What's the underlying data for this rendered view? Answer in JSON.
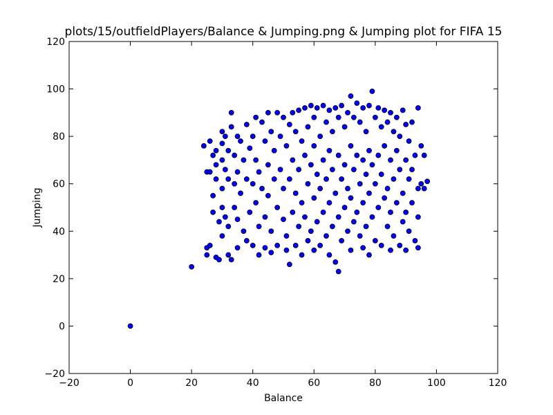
{
  "chart_data": {
    "type": "scatter",
    "title": "plots/15/outfieldPlayers/Balance & Jumping.png & Jumping plot for FIFA 15",
    "xlabel": "Balance",
    "ylabel": "Jumping",
    "xlim": [
      -20,
      120
    ],
    "ylim": [
      -20,
      120
    ],
    "xticks": [
      -20,
      0,
      20,
      40,
      60,
      80,
      100,
      120
    ],
    "yticks": [
      -20,
      0,
      20,
      40,
      60,
      80,
      100,
      120
    ],
    "grid": false,
    "legend": "none",
    "marker_color": "#0000ff",
    "edge_color": "#000000",
    "series": [
      {
        "points": [
          [
            0,
            0
          ],
          [
            20,
            25
          ],
          [
            24,
            76
          ],
          [
            26,
            78
          ],
          [
            27,
            72
          ],
          [
            25,
            65
          ],
          [
            26,
            65
          ],
          [
            25,
            33
          ],
          [
            25,
            30
          ],
          [
            26,
            34
          ],
          [
            27,
            55
          ],
          [
            27,
            48
          ],
          [
            28,
            74
          ],
          [
            28,
            68
          ],
          [
            28,
            62
          ],
          [
            28,
            29
          ],
          [
            29,
            28
          ],
          [
            29,
            44
          ],
          [
            30,
            82
          ],
          [
            30,
            77
          ],
          [
            30,
            70
          ],
          [
            30,
            58
          ],
          [
            30,
            50
          ],
          [
            30,
            38
          ],
          [
            31,
            80
          ],
          [
            31,
            66
          ],
          [
            31,
            46
          ],
          [
            32,
            74
          ],
          [
            32,
            62
          ],
          [
            32,
            42
          ],
          [
            32,
            30
          ],
          [
            33,
            90
          ],
          [
            33,
            84
          ],
          [
            33,
            28
          ],
          [
            34,
            72
          ],
          [
            34,
            60
          ],
          [
            34,
            50
          ],
          [
            35,
            80
          ],
          [
            35,
            65
          ],
          [
            35,
            45
          ],
          [
            35,
            33
          ],
          [
            36,
            78
          ],
          [
            36,
            56
          ],
          [
            37,
            70
          ],
          [
            37,
            40
          ],
          [
            38,
            85
          ],
          [
            38,
            62
          ],
          [
            38,
            36
          ],
          [
            39,
            75
          ],
          [
            39,
            48
          ],
          [
            40,
            80
          ],
          [
            40,
            60
          ],
          [
            40,
            34
          ],
          [
            41,
            88
          ],
          [
            41,
            70
          ],
          [
            41,
            52
          ],
          [
            42,
            65
          ],
          [
            42,
            42
          ],
          [
            42,
            30
          ],
          [
            43,
            86
          ],
          [
            43,
            58
          ],
          [
            44,
            78
          ],
          [
            44,
            46
          ],
          [
            44,
            33
          ],
          [
            45,
            90
          ],
          [
            45,
            68
          ],
          [
            45,
            55
          ],
          [
            46,
            82
          ],
          [
            46,
            40
          ],
          [
            46,
            31
          ],
          [
            47,
            74
          ],
          [
            47,
            62
          ],
          [
            48,
            90
          ],
          [
            48,
            50
          ],
          [
            48,
            34
          ],
          [
            49,
            80
          ],
          [
            49,
            66
          ],
          [
            50,
            88
          ],
          [
            50,
            58
          ],
          [
            50,
            45
          ],
          [
            51,
            76
          ],
          [
            51,
            38
          ],
          [
            51,
            32
          ],
          [
            52,
            85
          ],
          [
            52,
            62
          ],
          [
            52,
            26
          ],
          [
            53,
            90
          ],
          [
            53,
            70
          ],
          [
            53,
            48
          ],
          [
            54,
            82
          ],
          [
            54,
            56
          ],
          [
            54,
            34
          ],
          [
            55,
            91
          ],
          [
            55,
            66
          ],
          [
            55,
            42
          ],
          [
            56,
            78
          ],
          [
            56,
            52
          ],
          [
            56,
            30
          ],
          [
            57,
            92
          ],
          [
            57,
            72
          ],
          [
            57,
            46
          ],
          [
            58,
            84
          ],
          [
            58,
            60
          ],
          [
            58,
            36
          ],
          [
            59,
            93
          ],
          [
            59,
            68
          ],
          [
            59,
            40
          ],
          [
            60,
            88
          ],
          [
            60,
            76
          ],
          [
            60,
            54
          ],
          [
            60,
            32
          ],
          [
            61,
            92
          ],
          [
            61,
            64
          ],
          [
            61,
            44
          ],
          [
            62,
            80
          ],
          [
            62,
            58
          ],
          [
            62,
            34
          ],
          [
            63,
            93
          ],
          [
            63,
            70
          ],
          [
            63,
            48
          ],
          [
            64,
            86
          ],
          [
            64,
            62
          ],
          [
            64,
            38
          ],
          [
            65,
            91
          ],
          [
            65,
            74
          ],
          [
            65,
            52
          ],
          [
            65,
            30
          ],
          [
            66,
            82
          ],
          [
            66,
            66
          ],
          [
            66,
            42
          ],
          [
            67,
            92
          ],
          [
            67,
            56
          ],
          [
            67,
            27
          ],
          [
            68,
            88
          ],
          [
            68,
            72
          ],
          [
            68,
            46
          ],
          [
            68,
            23
          ],
          [
            69,
            93
          ],
          [
            69,
            62
          ],
          [
            69,
            36
          ],
          [
            70,
            84
          ],
          [
            70,
            68
          ],
          [
            70,
            50
          ],
          [
            71,
            90
          ],
          [
            71,
            58
          ],
          [
            71,
            40
          ],
          [
            72,
            97
          ],
          [
            72,
            76
          ],
          [
            72,
            54
          ],
          [
            72,
            32
          ],
          [
            73,
            88
          ],
          [
            73,
            66
          ],
          [
            73,
            44
          ],
          [
            74,
            94
          ],
          [
            74,
            72
          ],
          [
            74,
            48
          ],
          [
            75,
            86
          ],
          [
            75,
            60
          ],
          [
            75,
            38
          ],
          [
            76,
            92
          ],
          [
            76,
            70
          ],
          [
            76,
            52
          ],
          [
            76,
            33
          ],
          [
            77,
            82
          ],
          [
            77,
            64
          ],
          [
            77,
            42
          ],
          [
            78,
            93
          ],
          [
            78,
            74
          ],
          [
            78,
            56
          ],
          [
            78,
            30
          ],
          [
            79,
            99
          ],
          [
            79,
            68
          ],
          [
            79,
            46
          ],
          [
            80,
            88
          ],
          [
            80,
            60
          ],
          [
            80,
            36
          ],
          [
            81,
            92
          ],
          [
            81,
            72
          ],
          [
            81,
            50
          ],
          [
            82,
            84
          ],
          [
            82,
            64
          ],
          [
            82,
            34
          ],
          [
            83,
            91
          ],
          [
            83,
            76
          ],
          [
            83,
            54
          ],
          [
            84,
            86
          ],
          [
            84,
            58
          ],
          [
            84,
            42
          ],
          [
            85,
            90
          ],
          [
            85,
            70
          ],
          [
            85,
            48
          ],
          [
            85,
            32
          ],
          [
            86,
            82
          ],
          [
            86,
            62
          ],
          [
            86,
            38
          ],
          [
            87,
            88
          ],
          [
            87,
            74
          ],
          [
            87,
            52
          ],
          [
            88,
            80
          ],
          [
            88,
            66
          ],
          [
            88,
            34
          ],
          [
            89,
            91
          ],
          [
            89,
            56
          ],
          [
            89,
            44
          ],
          [
            90,
            85
          ],
          [
            90,
            70
          ],
          [
            90,
            48
          ],
          [
            90,
            32
          ],
          [
            91,
            78
          ],
          [
            91,
            62
          ],
          [
            91,
            40
          ],
          [
            92,
            86
          ],
          [
            92,
            66
          ],
          [
            92,
            52
          ],
          [
            93,
            72
          ],
          [
            93,
            36
          ],
          [
            94,
            92
          ],
          [
            94,
            58
          ],
          [
            94,
            46
          ],
          [
            94,
            33
          ],
          [
            95,
            76
          ],
          [
            95,
            60
          ],
          [
            96,
            72
          ],
          [
            96,
            58
          ],
          [
            97,
            61
          ]
        ]
      }
    ]
  }
}
